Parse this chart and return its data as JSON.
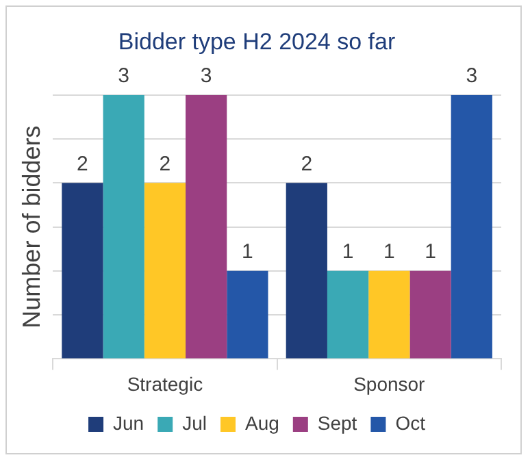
{
  "chart_data": {
    "type": "bar",
    "title": "Bidder type H2 2024 so far",
    "ylabel": "Number of bidders",
    "categories": [
      "Strategic",
      "Sponsor"
    ],
    "series": [
      {
        "name": "Jun",
        "color": "#1f3d7a",
        "values": [
          2,
          2
        ]
      },
      {
        "name": "Jul",
        "color": "#3aa9b5",
        "values": [
          3,
          1
        ]
      },
      {
        "name": "Aug",
        "color": "#ffc726",
        "values": [
          2,
          1
        ]
      },
      {
        "name": "Sept",
        "color": "#9b3f82",
        "values": [
          3,
          1
        ]
      },
      {
        "name": "Oct",
        "color": "#2457a8",
        "values": [
          1,
          3
        ]
      }
    ],
    "ylim": [
      0,
      3
    ],
    "yticks": [
      {
        "value": 0,
        "label": null
      },
      {
        "value": 0.5,
        "label": null
      },
      {
        "value": 1,
        "label": null
      },
      {
        "value": 1.5,
        "label": null
      },
      {
        "value": 2,
        "label": null
      },
      {
        "value": 2.5,
        "label": null
      },
      {
        "value": 3,
        "label": null
      }
    ],
    "tick_labels": "x",
    "grid": "y",
    "legend": "bottom",
    "data_labels": true
  }
}
